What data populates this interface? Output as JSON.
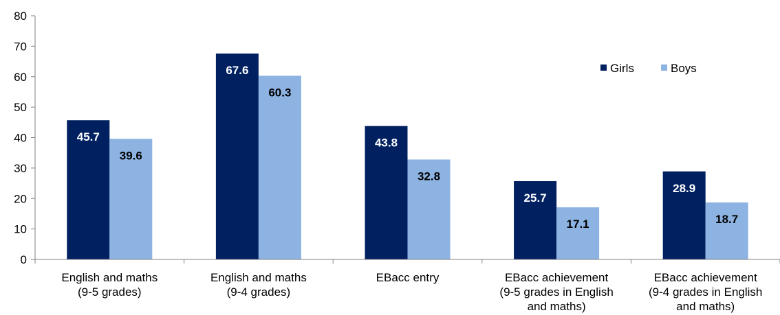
{
  "chart_data": {
    "type": "bar",
    "categories": [
      [
        "English and maths",
        "(9-5 grades)"
      ],
      [
        "English and maths",
        "(9-4 grades)"
      ],
      [
        "EBacc entry"
      ],
      [
        "EBacc achievement",
        "(9-5 grades in English",
        "and maths)"
      ],
      [
        "EBacc achievement",
        "(9-4  grades in English",
        "and maths)"
      ]
    ],
    "series": [
      {
        "name": "Girls",
        "color": "#002060",
        "label_color": "#ffffff",
        "values": [
          45.7,
          67.6,
          43.8,
          25.7,
          28.9
        ]
      },
      {
        "name": "Boys",
        "color": "#8db3e2",
        "label_color": "#000000",
        "values": [
          39.6,
          60.3,
          32.8,
          17.1,
          18.7
        ]
      }
    ],
    "ylim": [
      0,
      80
    ],
    "yticks": [
      0,
      10,
      20,
      30,
      40,
      50,
      60,
      70,
      80
    ],
    "grid": false,
    "legend_position": "top-right",
    "title": "",
    "xlabel": "",
    "ylabel": ""
  }
}
